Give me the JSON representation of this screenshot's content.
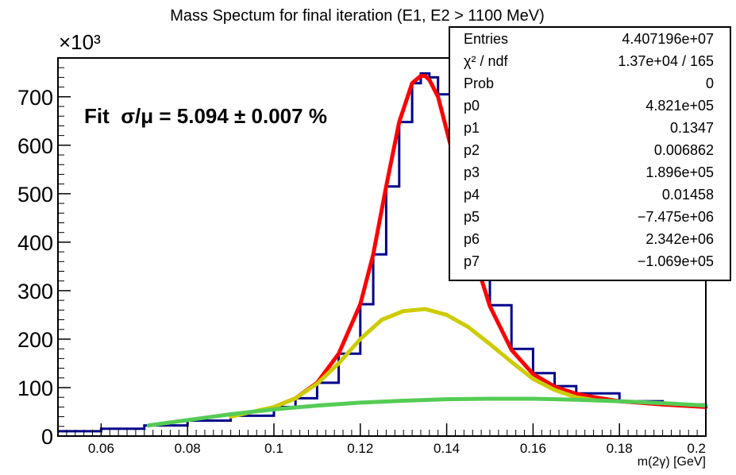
{
  "chart_data": {
    "type": "line",
    "title": "Mass Spectum for final iteration (E1, E2 > 1100 MeV)",
    "xlabel": "m(2γ) [GeV]",
    "ylabel": "",
    "y_multiplier_label": "×10³",
    "xlim": [
      0.05,
      0.2
    ],
    "ylim": [
      0,
      780
    ],
    "x_ticks": [
      0.06,
      0.08,
      0.1,
      0.12,
      0.14,
      0.16,
      0.18,
      0.2
    ],
    "x_tick_labels": [
      "0.06",
      "0.08",
      "0.1",
      "0.12",
      "0.14",
      "0.16",
      "0.18",
      "0.2"
    ],
    "y_ticks": [
      0,
      100,
      200,
      300,
      400,
      500,
      600,
      700
    ],
    "y_tick_labels": [
      "0",
      "100",
      "200",
      "300",
      "400",
      "500",
      "600",
      "700"
    ],
    "annotation": "Fit  σ/μ = 5.094 ± 0.007 %",
    "colors": {
      "data": "#00008b",
      "total_fit": "#ff0000",
      "signal": "#cccc00",
      "background": "#55cc55"
    },
    "series": [
      {
        "style": "histogram",
        "color": "#00008b",
        "x": [
          0.05,
          0.06,
          0.07,
          0.08,
          0.09,
          0.1,
          0.105,
          0.11,
          0.115,
          0.12,
          0.123,
          0.126,
          0.129,
          0.132,
          0.134,
          0.135,
          0.136,
          0.138,
          0.141,
          0.144,
          0.147,
          0.15,
          0.155,
          0.16,
          0.165,
          0.17,
          0.18,
          0.19,
          0.2
        ],
        "y": [
          10,
          15,
          22,
          32,
          42,
          60,
          78,
          110,
          170,
          272,
          375,
          515,
          648,
          728,
          748,
          748,
          740,
          705,
          600,
          470,
          355,
          270,
          180,
          130,
          103,
          88,
          72,
          65,
          60
        ]
      },
      {
        "style": "line",
        "color": "#ff0000",
        "x": [
          0.1,
          0.105,
          0.11,
          0.115,
          0.12,
          0.123,
          0.126,
          0.129,
          0.132,
          0.134,
          0.135,
          0.136,
          0.138,
          0.141,
          0.144,
          0.147,
          0.15,
          0.155,
          0.16,
          0.165,
          0.17,
          0.175,
          0.18,
          0.19,
          0.2
        ],
        "y": [
          60,
          78,
          110,
          170,
          272,
          375,
          515,
          648,
          728,
          743,
          743,
          735,
          700,
          597,
          468,
          353,
          268,
          178,
          128,
          102,
          87,
          79,
          72,
          65,
          60
        ]
      },
      {
        "style": "line",
        "color": "#cccc00",
        "x": [
          0.09,
          0.1,
          0.105,
          0.11,
          0.115,
          0.12,
          0.125,
          0.13,
          0.135,
          0.14,
          0.145,
          0.15,
          0.155,
          0.16,
          0.165,
          0.17,
          0.175
        ],
        "y": [
          40,
          60,
          78,
          108,
          150,
          200,
          240,
          258,
          262,
          250,
          225,
          190,
          153,
          118,
          95,
          80,
          73
        ]
      },
      {
        "style": "line",
        "color": "#55cc55",
        "x": [
          0.071,
          0.08,
          0.09,
          0.1,
          0.11,
          0.12,
          0.13,
          0.14,
          0.15,
          0.16,
          0.17,
          0.18,
          0.19,
          0.2
        ],
        "y": [
          22,
          33,
          45,
          55,
          63,
          69,
          73,
          76,
          77,
          77,
          75,
          72,
          68,
          63
        ]
      }
    ],
    "stats_box": {
      "rows": [
        {
          "label": "Entries",
          "value": "4.407196e+07"
        },
        {
          "label": "χ² / ndf",
          "value": "1.37e+04 / 165"
        },
        {
          "label": "Prob",
          "value": "0"
        },
        {
          "label": "p0",
          "value": "4.821e+05"
        },
        {
          "label": "p1",
          "value": "0.1347"
        },
        {
          "label": "p2",
          "value": "0.006862"
        },
        {
          "label": "p3",
          "value": "1.896e+05"
        },
        {
          "label": "p4",
          "value": "0.01458"
        },
        {
          "label": "p5",
          "value": "−7.475e+06"
        },
        {
          "label": "p6",
          "value": "2.342e+06"
        },
        {
          "label": "p7",
          "value": "−1.069e+05"
        }
      ]
    }
  }
}
